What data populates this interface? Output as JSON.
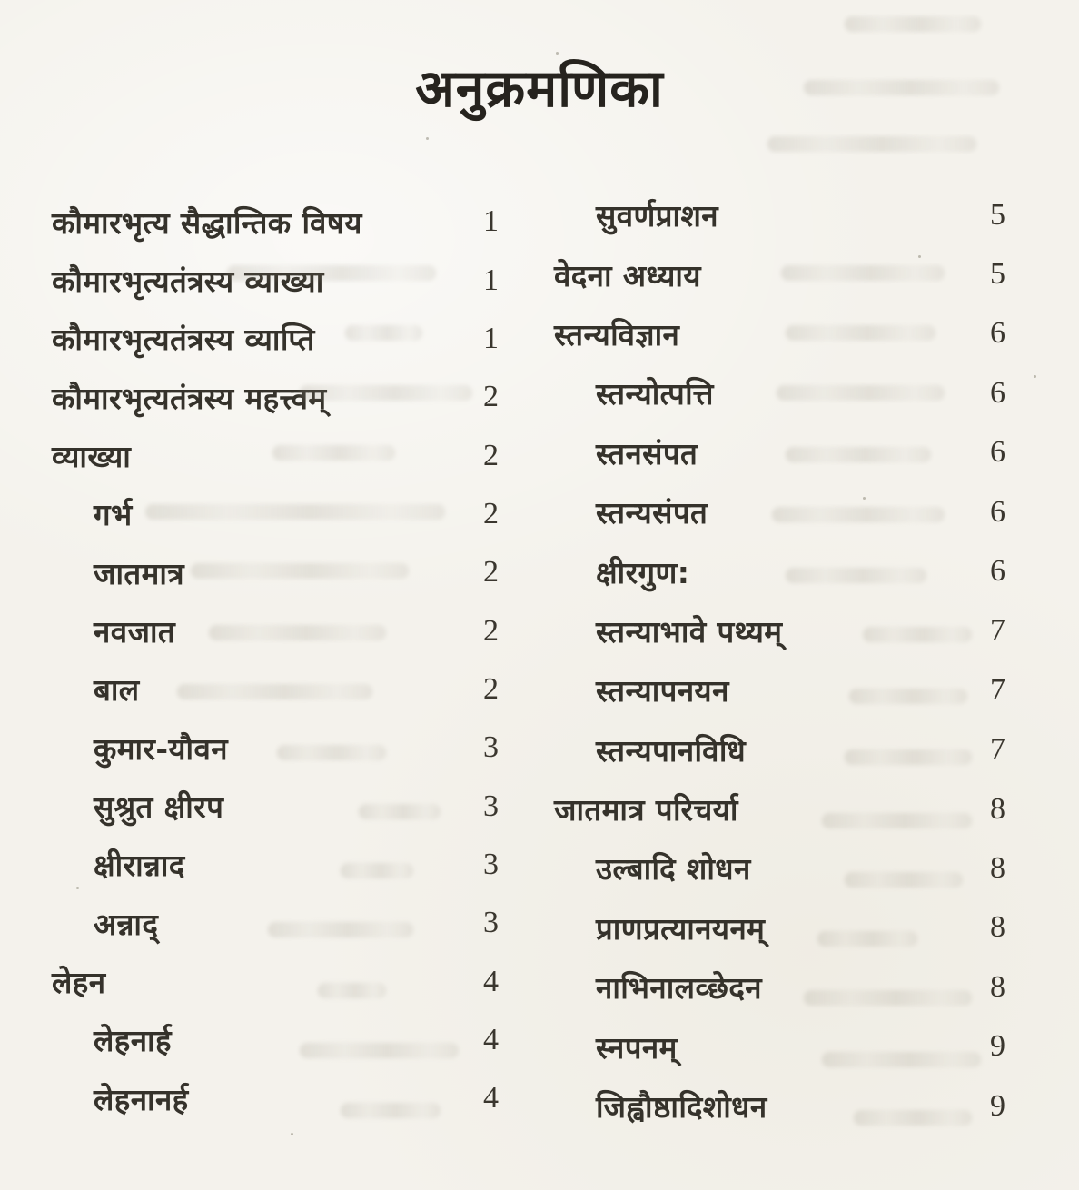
{
  "page": {
    "title": "अनुक्रमणिका"
  },
  "colors": {
    "paper": "#f4f2ec",
    "ink": "#35322b"
  },
  "toc": {
    "left": [
      {
        "label": "कौमारभृत्य सैद्धान्तिक विषय",
        "page": "1",
        "indent": 0
      },
      {
        "label": "कौमारभृत्यतंत्रस्य व्याख्या",
        "page": "1",
        "indent": 0
      },
      {
        "label": "कौमारभृत्यतंत्रस्य व्याप्ति",
        "page": "1",
        "indent": 0
      },
      {
        "label": "कौमारभृत्यतंत्रस्य महत्त्वम्",
        "page": "2",
        "indent": 0
      },
      {
        "label": "व्याख्या",
        "page": "2",
        "indent": 0
      },
      {
        "label": "गर्भ",
        "page": "2",
        "indent": 1
      },
      {
        "label": "जातमात्र",
        "page": "2",
        "indent": 1
      },
      {
        "label": "नवजात",
        "page": "2",
        "indent": 1
      },
      {
        "label": "बाल",
        "page": "2",
        "indent": 1
      },
      {
        "label": "कुमार-यौवन",
        "page": "3",
        "indent": 1
      },
      {
        "label": "सुश्रुत क्षीरप",
        "page": "3",
        "indent": 1
      },
      {
        "label": "क्षीरान्नाद",
        "page": "3",
        "indent": 1
      },
      {
        "label": "अन्नाद्",
        "page": "3",
        "indent": 1
      },
      {
        "label": "लेहन",
        "page": "4",
        "indent": 0
      },
      {
        "label": "लेहनार्ह",
        "page": "4",
        "indent": 1
      },
      {
        "label": "लेहनानर्ह",
        "page": "4",
        "indent": 1
      }
    ],
    "right": [
      {
        "label": "सुवर्णप्राशन",
        "page": "5",
        "indent": 1
      },
      {
        "label": "वेदना अध्याय",
        "page": "5",
        "indent": 0
      },
      {
        "label": "स्तन्यविज्ञान",
        "page": "6",
        "indent": 0
      },
      {
        "label": "स्तन्योत्पत्ति",
        "page": "6",
        "indent": 1
      },
      {
        "label": "स्तनसंपत",
        "page": "6",
        "indent": 1
      },
      {
        "label": "स्तन्यसंपत",
        "page": "6",
        "indent": 1
      },
      {
        "label": "क्षीरगुण:",
        "page": "6",
        "indent": 1
      },
      {
        "label": "स्तन्याभावे पथ्यम्",
        "page": "7",
        "indent": 1
      },
      {
        "label": "स्तन्यापनयन",
        "page": "7",
        "indent": 1
      },
      {
        "label": "स्तन्यपानविधि",
        "page": "7",
        "indent": 1
      },
      {
        "label": "जातमात्र परिचर्या",
        "page": "8",
        "indent": 0
      },
      {
        "label": "उल्बादि शोधन",
        "page": "8",
        "indent": 1
      },
      {
        "label": "प्राणप्रत्यानयनम्",
        "page": "8",
        "indent": 1
      },
      {
        "label": "नाभिनालव्छेदन",
        "page": "8",
        "indent": 1
      },
      {
        "label": "स्नपनम्",
        "page": "9",
        "indent": 1
      },
      {
        "label": "जिह्वौष्ठादिशोधन",
        "page": "9",
        "indent": 1
      }
    ]
  }
}
